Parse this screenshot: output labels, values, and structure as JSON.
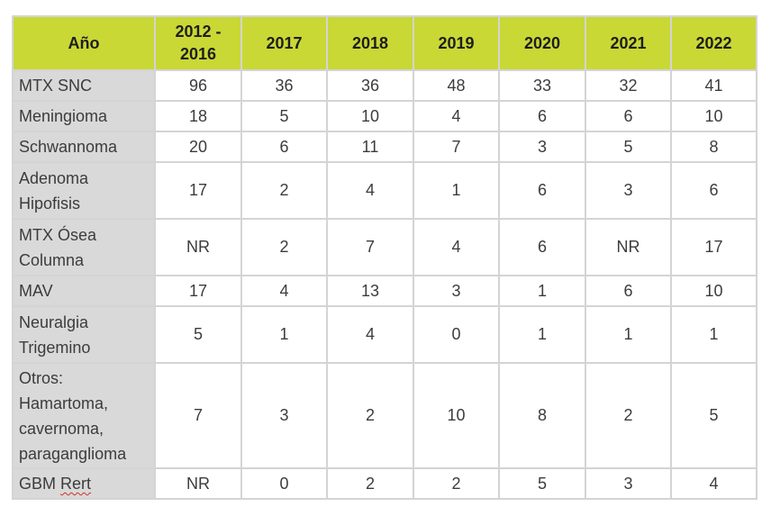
{
  "table": {
    "header": [
      "Año",
      "2012 - 2016",
      "2017",
      "2018",
      "2019",
      "2020",
      "2021",
      "2022"
    ],
    "rows": [
      {
        "label": "MTX SNC",
        "values": [
          "96",
          "36",
          "36",
          "48",
          "33",
          "32",
          "41"
        ]
      },
      {
        "label": "Meningioma",
        "values": [
          "18",
          "5",
          "10",
          "4",
          "6",
          "6",
          "10"
        ]
      },
      {
        "label": "Schwannoma",
        "values": [
          "20",
          "6",
          "11",
          "7",
          "3",
          "5",
          "8"
        ]
      },
      {
        "label": "Adenoma Hipofisis",
        "values": [
          "17",
          "2",
          "4",
          "1",
          "6",
          "3",
          "6"
        ]
      },
      {
        "label": "MTX Ósea Columna",
        "values": [
          "NR",
          "2",
          "7",
          "4",
          "6",
          "NR",
          "17"
        ]
      },
      {
        "label": "MAV",
        "values": [
          "17",
          "4",
          "13",
          "3",
          "1",
          "6",
          "10"
        ]
      },
      {
        "label": "Neuralgia Trigemino",
        "values": [
          "5",
          "1",
          "4",
          "0",
          "1",
          "1",
          "1"
        ]
      },
      {
        "label": "Otros: Hamartoma, cavernoma, paraganglioma",
        "values": [
          "7",
          "3",
          "2",
          "10",
          "8",
          "2",
          "5"
        ]
      },
      {
        "label_main": "GBM ",
        "label_flagged": "Rert",
        "values": [
          "NR",
          "0",
          "2",
          "2",
          "5",
          "3",
          "4"
        ]
      }
    ]
  }
}
